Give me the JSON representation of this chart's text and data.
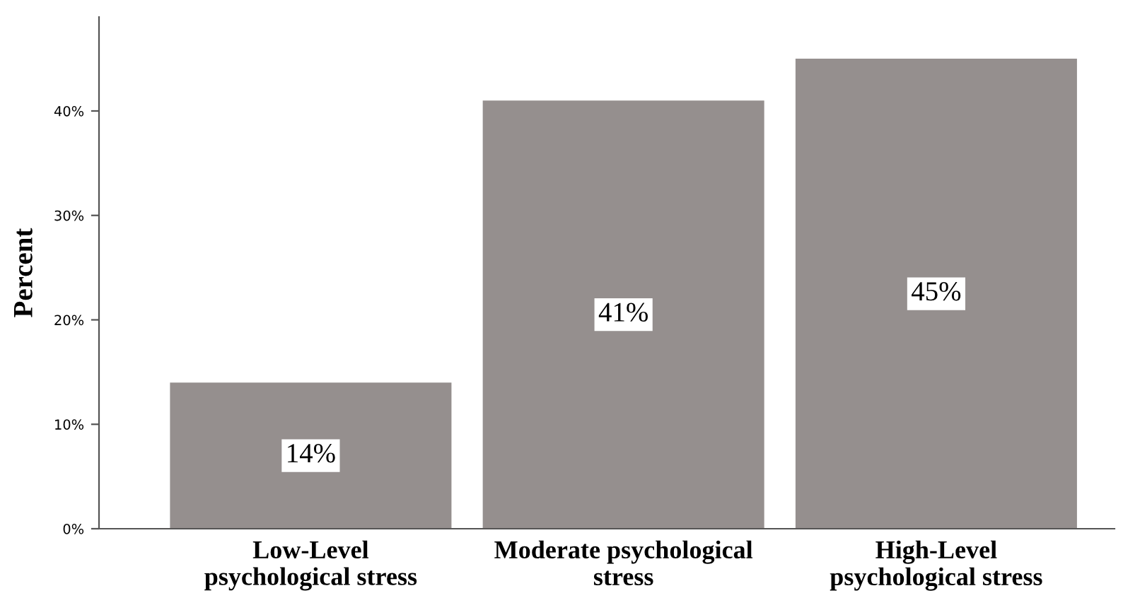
{
  "chart_data": {
    "type": "bar",
    "ylabel": "Percent",
    "categories": [
      "Low-Level\npsychological stress",
      "Moderate psychological\nstress",
      "High-Level\npsychological stress"
    ],
    "values": [
      14,
      41,
      45
    ],
    "color": "#958f8e",
    "value_labels": [
      "14%",
      "41%",
      "45%"
    ],
    "ylim": [
      0,
      49
    ],
    "yticks": [
      {
        "value": 0,
        "label": "0%"
      },
      {
        "value": 10,
        "label": "10%"
      },
      {
        "value": 20,
        "label": "20%"
      },
      {
        "value": 30,
        "label": "30%"
      },
      {
        "value": 40,
        "label": "40%"
      }
    ],
    "grid": false,
    "legend": false
  }
}
